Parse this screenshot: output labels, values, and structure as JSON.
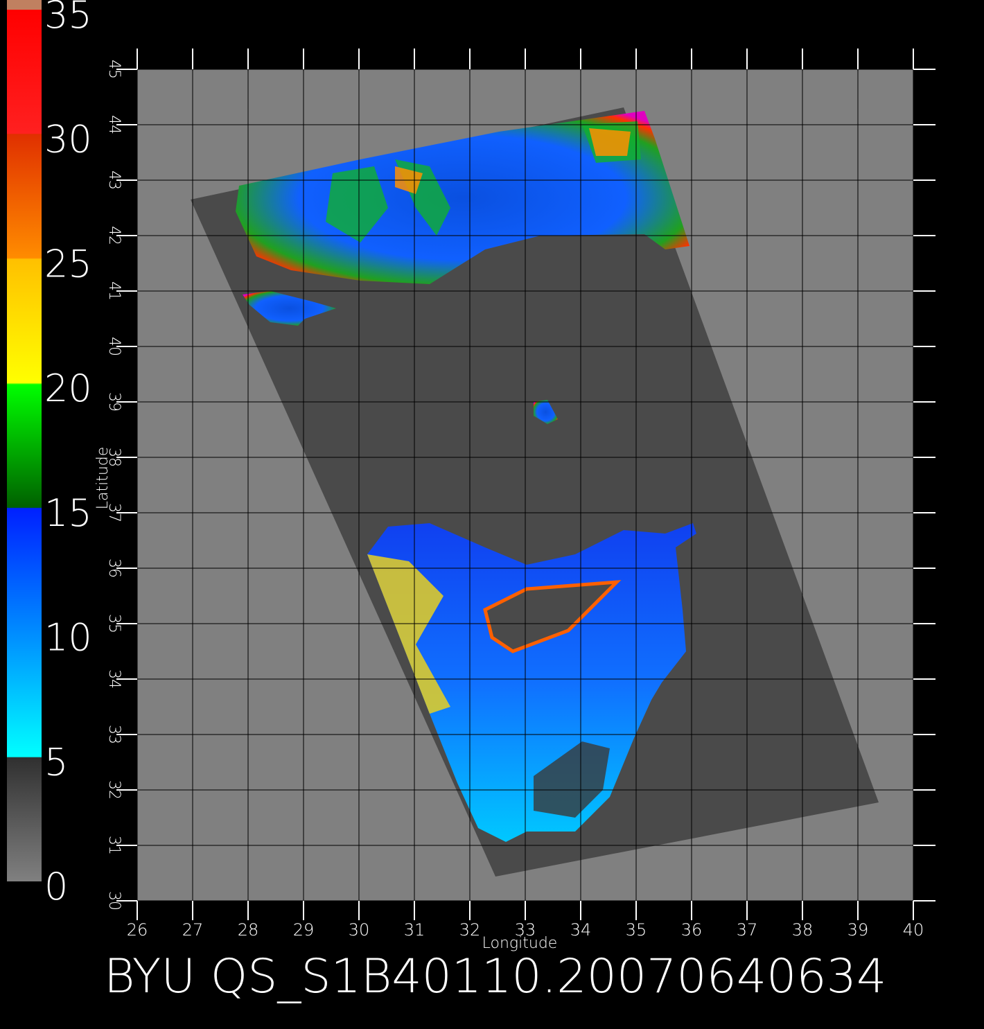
{
  "map": {
    "title": "BYU QS_S1B40110.20070640634",
    "xlabel": "Longitude",
    "ylabel": "Latitude",
    "xlim": [
      26,
      40
    ],
    "ylim": [
      30,
      45
    ],
    "xticks": [
      26,
      27,
      28,
      29,
      30,
      31,
      32,
      33,
      34,
      35,
      36,
      37,
      38,
      39,
      40
    ],
    "yticks": [
      30,
      31,
      32,
      33,
      34,
      35,
      36,
      37,
      38,
      39,
      40,
      41,
      42,
      43,
      44,
      45
    ],
    "colorbar": {
      "lim": [
        0,
        35
      ],
      "ticks": [
        0,
        5,
        10,
        15,
        20,
        25,
        30,
        35
      ]
    }
  }
}
